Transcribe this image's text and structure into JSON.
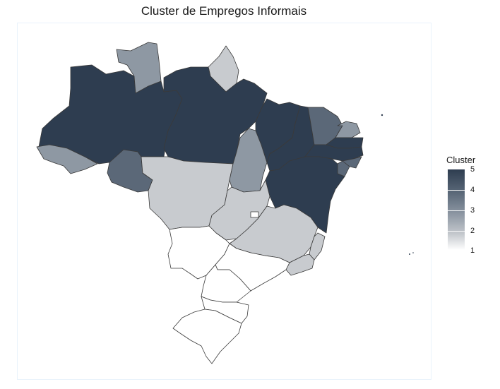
{
  "title": "Cluster de Empregos Informais",
  "colors": {
    "c1": "#ffffff",
    "c2": "#c8cbcf",
    "c3": "#8e98a3",
    "c4": "#5b6878",
    "c5": "#2e3d50",
    "border": "#3a3a3a"
  },
  "legend": {
    "title": "Cluster",
    "ticks": [
      "5",
      "4",
      "3",
      "2",
      "1"
    ]
  },
  "regions": [
    {
      "id": "AM",
      "cluster": 5
    },
    {
      "id": "PA",
      "cluster": 5
    },
    {
      "id": "RR",
      "cluster": 3
    },
    {
      "id": "AP",
      "cluster": 2
    },
    {
      "id": "AC",
      "cluster": 3
    },
    {
      "id": "RO",
      "cluster": 4
    },
    {
      "id": "MT",
      "cluster": 2
    },
    {
      "id": "TO",
      "cluster": 3
    },
    {
      "id": "MA",
      "cluster": 5
    },
    {
      "id": "PI",
      "cluster": 5
    },
    {
      "id": "CE",
      "cluster": 4
    },
    {
      "id": "RN",
      "cluster": 3
    },
    {
      "id": "PB",
      "cluster": 5
    },
    {
      "id": "PE",
      "cluster": 5
    },
    {
      "id": "AL",
      "cluster": 4
    },
    {
      "id": "SE",
      "cluster": 4
    },
    {
      "id": "BA",
      "cluster": 5
    },
    {
      "id": "GO",
      "cluster": 2
    },
    {
      "id": "DF",
      "cluster": 1
    },
    {
      "id": "MG",
      "cluster": 2
    },
    {
      "id": "ES",
      "cluster": 2
    },
    {
      "id": "RJ",
      "cluster": 2
    },
    {
      "id": "MS",
      "cluster": 1
    },
    {
      "id": "SP",
      "cluster": 1
    },
    {
      "id": "PR",
      "cluster": 1
    },
    {
      "id": "SC",
      "cluster": 1
    },
    {
      "id": "RS",
      "cluster": 1
    }
  ]
}
